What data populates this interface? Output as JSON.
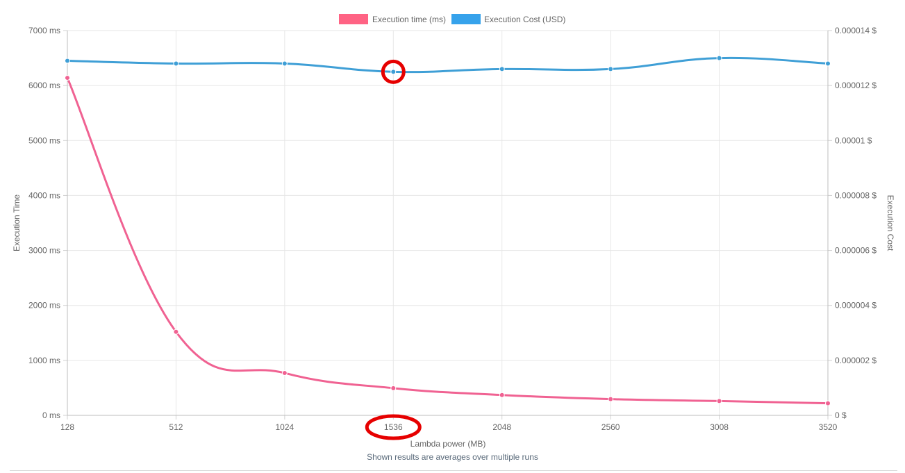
{
  "chart_data": {
    "type": "line",
    "categories": [
      "128",
      "512",
      "1024",
      "1536",
      "2048",
      "2560",
      "3008",
      "3520"
    ],
    "xlabel": "Lambda power (MB)",
    "y_left_label": "Execution Time",
    "y_right_label": "Execution Cost",
    "y_left_ticks": [
      "0 ms",
      "1000 ms",
      "2000 ms",
      "3000 ms",
      "4000 ms",
      "5000 ms",
      "6000 ms",
      "7000 ms"
    ],
    "y_right_ticks": [
      "0 $",
      "0.000002 $",
      "0.000004 $",
      "0.000006 $",
      "0.000008 $",
      "0.00001 $",
      "0.000012 $",
      "0.000014 $"
    ],
    "y_left_range": [
      0,
      7000
    ],
    "y_right_range": [
      0,
      1.4e-05
    ],
    "grid": true,
    "legend_position": "top-center",
    "series": [
      {
        "name": "Execution time (ms)",
        "axis": "left",
        "color": "#f06292",
        "legend_color": "#ff6384",
        "values": [
          6140,
          1520,
          770,
          495,
          370,
          295,
          260,
          220
        ]
      },
      {
        "name": "Execution Cost (USD)",
        "axis": "right",
        "color": "#3f9fd6",
        "legend_color": "#36a2eb",
        "values": [
          1.29e-05,
          1.28e-05,
          1.28e-05,
          1.25e-05,
          1.26e-05,
          1.26e-05,
          1.3e-05,
          1.28e-05
        ]
      }
    ],
    "highlight_color": "#e60000",
    "highlighted_category": "1536",
    "highlighted_series": "Execution Cost (USD)"
  },
  "footer": {
    "note": "Shown results are averages over multiple runs"
  }
}
